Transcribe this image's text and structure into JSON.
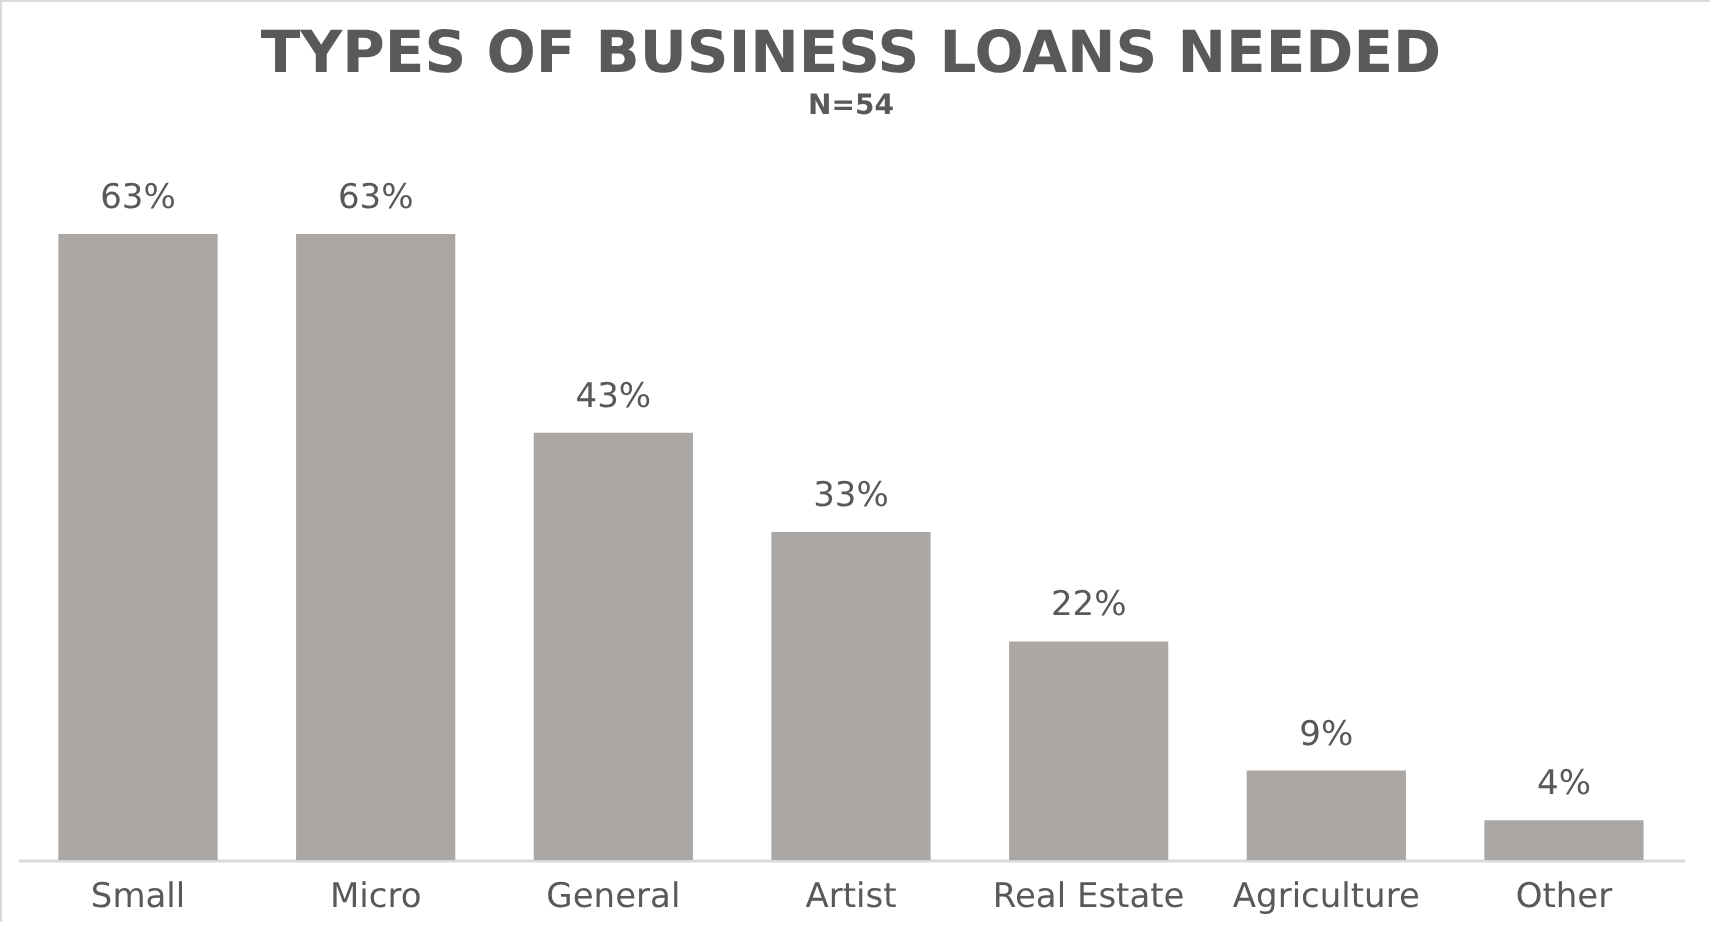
{
  "chart_data": {
    "type": "bar",
    "title": "TYPES OF BUSINESS LOANS NEEDED",
    "subtitle": "N=54",
    "categories": [
      "Small",
      "Micro",
      "General",
      "Artist",
      "Real Estate",
      "Agriculture",
      "Other"
    ],
    "values": [
      63,
      63,
      43,
      33,
      22,
      9,
      4
    ],
    "value_labels": [
      "63%",
      "63%",
      "43%",
      "33%",
      "22%",
      "9%",
      "4%"
    ],
    "color": "#aba7a5"
  }
}
